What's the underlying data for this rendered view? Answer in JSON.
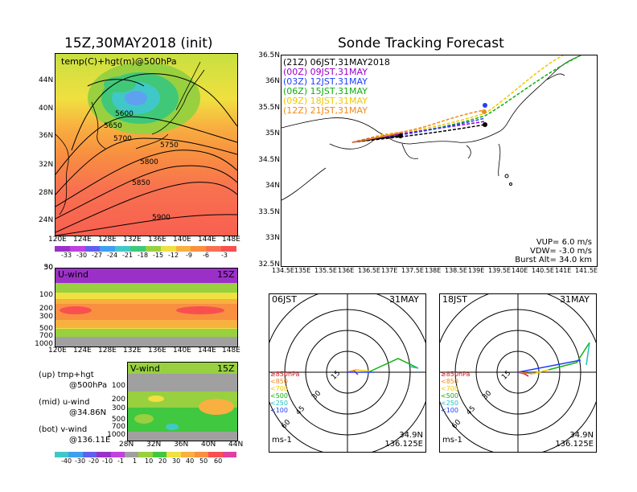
{
  "left": {
    "title": "15Z,30MAY2018 (init)",
    "map_label": "temp(C)+hgt(m)@500hPa",
    "contours": [
      "5600",
      "5650",
      "5700",
      "5750",
      "5800",
      "5850",
      "5900"
    ],
    "lat_ticks": [
      "44N",
      "40N",
      "36N",
      "32N",
      "28N",
      "24N"
    ],
    "lon_ticks": [
      "120E",
      "124E",
      "128E",
      "132E",
      "136E",
      "140E",
      "144E",
      "148E"
    ],
    "temp_scale": [
      "-33",
      "-30",
      "-27",
      "-24",
      "-21",
      "-18",
      "-15",
      "-12",
      "-9",
      "-6",
      "-3"
    ],
    "u_label": "U-wind",
    "u_time": "15Z",
    "p_ticks": [
      "30",
      "50",
      "100",
      "200",
      "300",
      "500",
      "700",
      "1000"
    ],
    "v_label": "V-wind",
    "v_time": "15Z",
    "v_p_ticks": [
      "100",
      "200",
      "300",
      "500",
      "700",
      "1000"
    ],
    "v_lat_ticks": [
      "28N",
      "32N",
      "36N",
      "40N",
      "44N"
    ],
    "wind_scale": [
      "-40",
      "-30",
      "-20",
      "-10",
      "-1",
      "1",
      "10",
      "20",
      "30",
      "40",
      "50",
      "60"
    ],
    "legend_up": "(up) tmp+hgt",
    "legend_up2": "@500hPa",
    "legend_mid": "(mid) u-wind",
    "legend_mid2": "@34.86N",
    "legend_bot": "(bot) v-wind",
    "legend_bot2": "@136.11E"
  },
  "right": {
    "title": "Sonde Tracking Forecast",
    "launches": [
      {
        "label": "(21Z) 06JST,31MAY2018",
        "color": "#000000"
      },
      {
        "label": "(00Z) 09JST,31MAY",
        "color": "#9b00c8"
      },
      {
        "label": "(03Z) 12JST,31MAY",
        "color": "#2040ff"
      },
      {
        "label": "(06Z) 15JST,31MAY",
        "color": "#10b010"
      },
      {
        "label": "(09Z) 18JST,31MAY",
        "color": "#f0c800"
      },
      {
        "label": "(12Z) 21JST,31MAY",
        "color": "#f08a1c"
      }
    ],
    "lat_ticks": [
      "36.5N",
      "36N",
      "35.5N",
      "35N",
      "34.5N",
      "34N",
      "33.5N",
      "33N",
      "32.5N"
    ],
    "lon_ticks": [
      "134.5E",
      "135E",
      "135.5E",
      "136E",
      "136.5E",
      "137E",
      "137.5E",
      "138E",
      "138.5E",
      "139E",
      "139.5E",
      "140E",
      "140.5E",
      "141E",
      "141.5E"
    ],
    "vup": "VUP= 6.0 m/s",
    "vdw": "VDW= -3.0 m/s",
    "burst": "Burst Alt= 34.0 km"
  },
  "hodo_left": {
    "time": "06JST",
    "date": "31MAY",
    "rings": [
      "15",
      "30",
      "45",
      "60"
    ],
    "levels": [
      "≥850hPa",
      "<850",
      "<700",
      "<500",
      "<250",
      "<100"
    ],
    "level_colors": [
      "#e01010",
      "#f08a1c",
      "#f0c800",
      "#10b010",
      "#20c0c0",
      "#2040ff"
    ],
    "unit": "ms-1",
    "lat": "34.9N",
    "lon": "136.125E"
  },
  "hodo_right": {
    "time": "18JST",
    "date": "31MAY",
    "rings": [
      "15",
      "30",
      "45",
      "60"
    ],
    "levels": [
      "≥850hPa",
      "<850",
      "<700",
      "<500",
      "<250",
      "<100"
    ],
    "level_colors": [
      "#e01010",
      "#f08a1c",
      "#f0c800",
      "#10b010",
      "#20c0c0",
      "#2040ff"
    ],
    "unit": "ms-1",
    "lat": "34.9N",
    "lon": "136.125E"
  }
}
